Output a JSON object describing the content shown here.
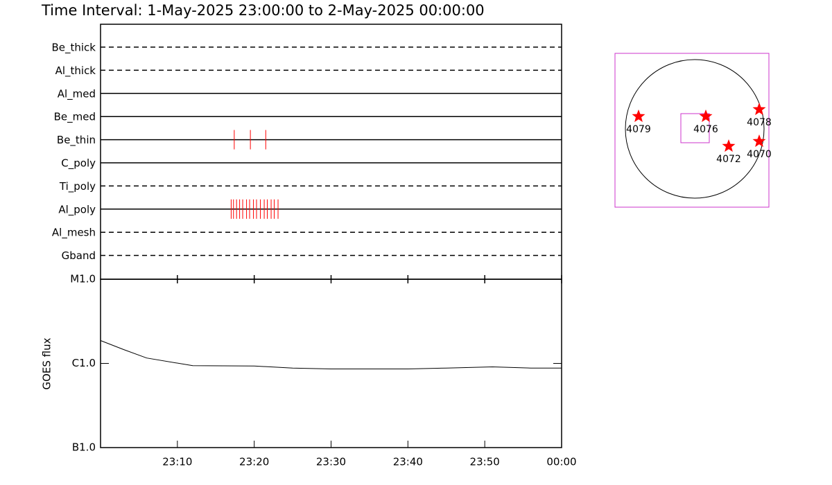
{
  "title": "Time Interval:  1-May-2025 23:00:00 to  2-May-2025 00:00:00",
  "chart_data": [
    {
      "type": "events",
      "color": "#ff0000",
      "xlim": [
        "23:00:00",
        "00:00:00"
      ],
      "series": [
        {
          "name": "Be_thick",
          "dashed": true,
          "x": []
        },
        {
          "name": "Al_thick",
          "dashed": true,
          "x": []
        },
        {
          "name": "Al_med",
          "dashed": false,
          "x": []
        },
        {
          "name": "Be_med",
          "dashed": false,
          "x": []
        },
        {
          "name": "Be_thin",
          "dashed": false,
          "x": [
            "23:17:24",
            "23:19:30",
            "23:21:30"
          ]
        },
        {
          "name": "C_poly",
          "dashed": false,
          "x": []
        },
        {
          "name": "Ti_poly",
          "dashed": true,
          "x": []
        },
        {
          "name": "Al_poly",
          "dashed": false,
          "x": [
            "23:17:00",
            "23:17:18",
            "23:17:42",
            "23:18:06",
            "23:18:30",
            "23:19:00",
            "23:19:24",
            "23:19:54",
            "23:20:18",
            "23:20:48",
            "23:21:18",
            "23:21:42",
            "23:22:12",
            "23:22:36",
            "23:23:06"
          ]
        },
        {
          "name": "Al_mesh",
          "dashed": true,
          "x": []
        },
        {
          "name": "Gband",
          "dashed": true,
          "x": []
        }
      ]
    },
    {
      "type": "line",
      "y_label": "GOES flux",
      "color": "#000000",
      "log_scale": true,
      "x": [
        "23:00:00",
        "23:03:00",
        "23:06:00",
        "23:12:00",
        "23:20:00",
        "23:25:00",
        "23:30:00",
        "23:40:00",
        "23:45:00",
        "23:51:00",
        "23:56:00",
        "00:00:00"
      ],
      "values": [
        1.87e-06,
        1.46e-06,
        1.16e-06,
        9.4e-07,
        9.3e-07,
        8.8e-07,
        8.6e-07,
        8.6e-07,
        8.8e-07,
        9.1e-07,
        8.8e-07,
        8.8e-07
      ],
      "xlim": [
        "23:00:00",
        "00:00:00"
      ],
      "xticks": [
        "23:10",
        "23:20",
        "23:30",
        "23:40",
        "23:50",
        "00:00"
      ],
      "ylim": [
        1e-07,
        1e-05
      ],
      "yticks": [
        {
          "value": 1e-07,
          "label": "B1.0"
        },
        {
          "value": 1e-06,
          "label": "C1.0"
        },
        {
          "value": 1e-05,
          "label": "M1.0"
        }
      ]
    }
  ],
  "map": {
    "regions": [
      {
        "label": "4079"
      },
      {
        "label": "4076"
      },
      {
        "label": "4078"
      },
      {
        "label": "4072"
      },
      {
        "label": "4070"
      }
    ]
  }
}
